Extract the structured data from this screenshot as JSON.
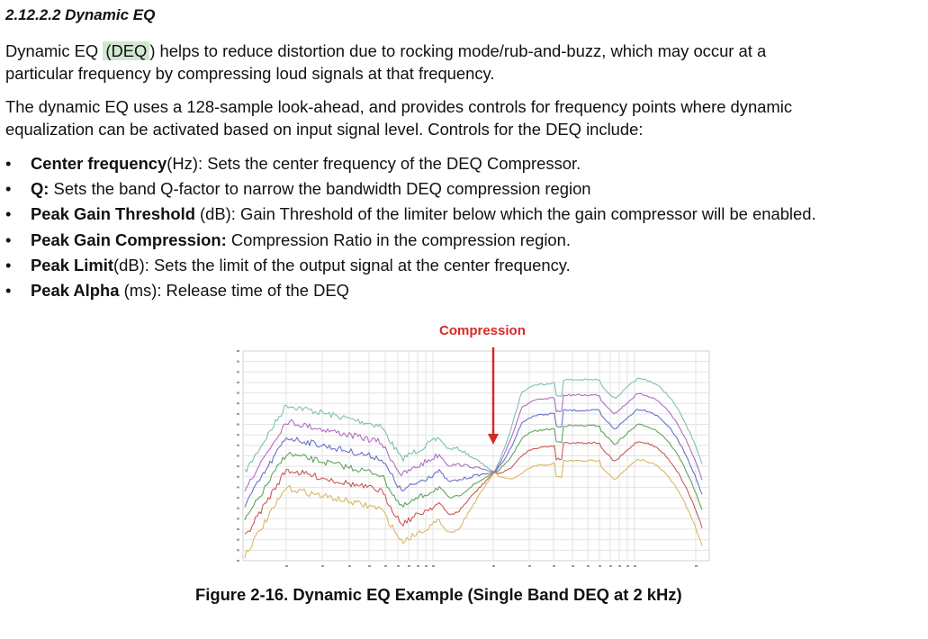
{
  "section": {
    "heading": "2.12.2.2 Dynamic EQ",
    "para1_before": "Dynamic EQ ",
    "para1_highlight": "(DEQ",
    "para1_line1_after": ") helps to reduce distortion due to rocking mode/rub-and-buzz, which may occur at a",
    "para1_line2": "particular frequency by compressing loud signals at that frequency.",
    "para2_line1": "The dynamic EQ uses a 128-sample look-ahead, and provides controls for frequency points where dynamic",
    "para2_line2": "equalization can be activated based on input signal level. Controls for the DEQ include:"
  },
  "bullets": [
    {
      "term": "Center frequency",
      "text": "(Hz): Sets the center frequency of the DEQ Compressor."
    },
    {
      "term": "Q:",
      "text": " Sets the band Q-factor to narrow the bandwidth DEQ compression region"
    },
    {
      "term": "Peak Gain Threshold",
      "text": " (dB): Gain Threshold of the limiter below which the gain compressor will be enabled."
    },
    {
      "term": "Peak Gain Compression:",
      "text": " Compression Ratio in the compression region."
    },
    {
      "term": "Peak Limit",
      "text": "(dB): Sets the limit of the output signal at the center frequency."
    },
    {
      "term": "Peak Alpha",
      "text": " (ms): Release time of the DEQ"
    }
  ],
  "bullet_char": "•",
  "figure": {
    "annotation": "Compression",
    "caption": "Figure 2-16. Dynamic EQ Example (Single Band DEQ at 2 kHz)",
    "colors": {
      "annotation": "#d42b27",
      "grid": "#e3e3e3",
      "series": [
        "#7fbfb4",
        "#b06ec4",
        "#6a71c8",
        "#5fa55c",
        "#c95a5a",
        "#d8b864"
      ]
    }
  },
  "colors": {
    "highlight": "#d2e7cf"
  }
}
